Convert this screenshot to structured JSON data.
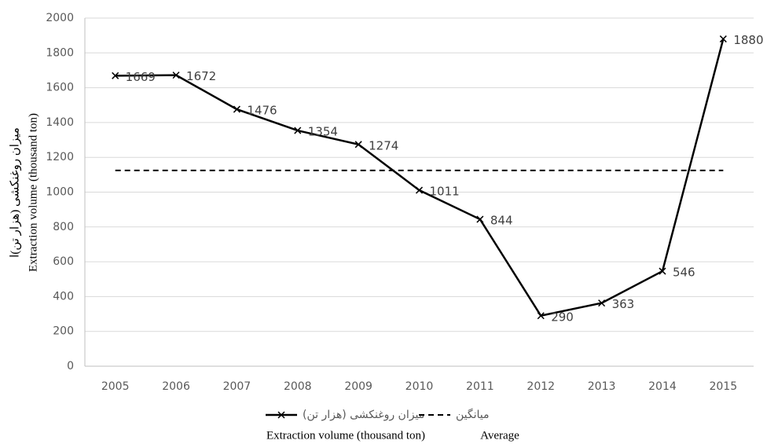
{
  "chart_data": {
    "type": "line",
    "y_label": [
      "میزان روغنکشی (هزار تن)ا",
      "Extraction volume (thousand ton)"
    ],
    "categories": [
      "2005",
      "2006",
      "2007",
      "2008",
      "2009",
      "2010",
      "2011",
      "2012",
      "2013",
      "2014",
      "2015"
    ],
    "series": [
      {
        "name": "میزان روغنکشی (هزار تن)",
        "color": "#000000",
        "marker": "x",
        "dashed": false,
        "values": [
          1669,
          1672,
          1476,
          1354,
          1274,
          1011,
          844,
          290,
          363,
          546,
          1880
        ]
      },
      {
        "name": "میانگین",
        "color": "#000000",
        "marker": "none",
        "dashed": true,
        "values": [
          1125,
          1125,
          1125,
          1125,
          1125,
          1125,
          1125,
          1125,
          1125,
          1125,
          1125
        ]
      }
    ],
    "legend_translations": [
      "Extraction volume (thousand ton)",
      "Average"
    ],
    "ylim": [
      0,
      2000
    ],
    "yticks": [
      0,
      200,
      400,
      600,
      800,
      1000,
      1200,
      1400,
      1600,
      1800,
      2000
    ],
    "grid": true,
    "data_labels_series": 0
  }
}
